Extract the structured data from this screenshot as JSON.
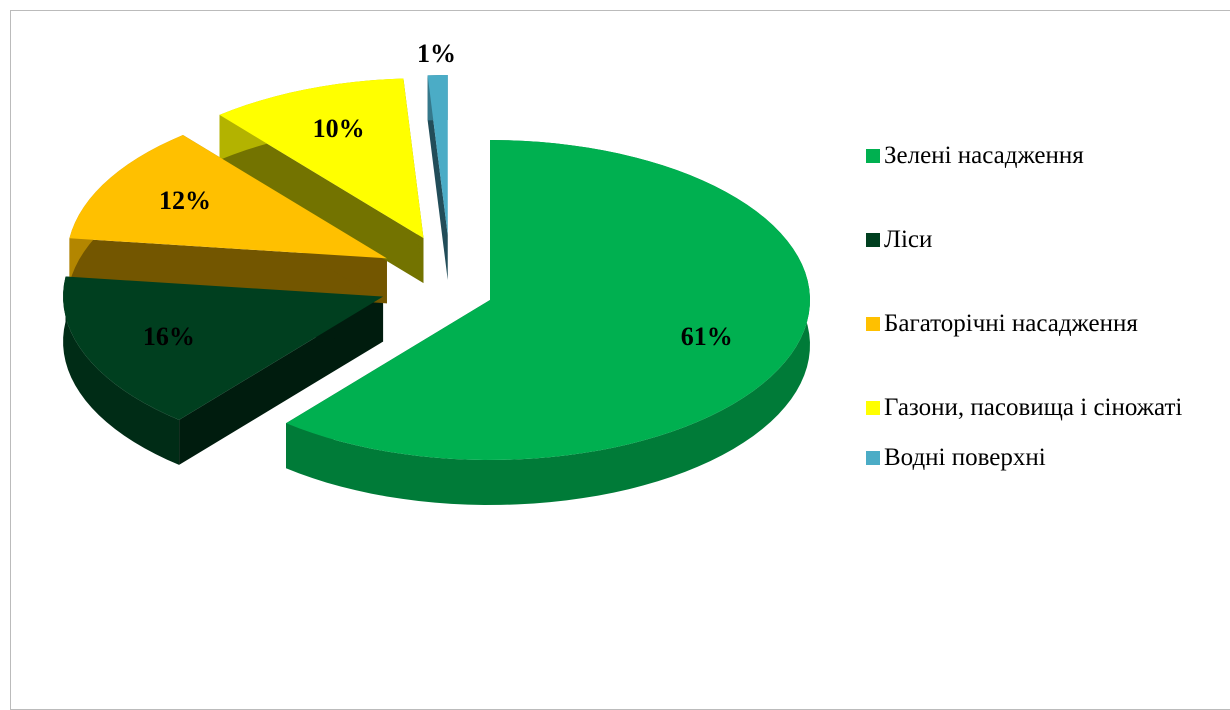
{
  "chart_data": {
    "type": "pie",
    "categories": [
      "Зелені насадження",
      "Ліси",
      "Багаторічні насадження",
      "Газони, пасовища і сіножаті",
      "Водні поверхні"
    ],
    "values": [
      61,
      16,
      12,
      10,
      1
    ],
    "value_labels": [
      "61%",
      "16%",
      "12%",
      "10%",
      "1%"
    ],
    "colors": [
      "#00b050",
      "#003f1f",
      "#ffc000",
      "#ffff00",
      "#4bacc6"
    ],
    "legend": "right"
  }
}
